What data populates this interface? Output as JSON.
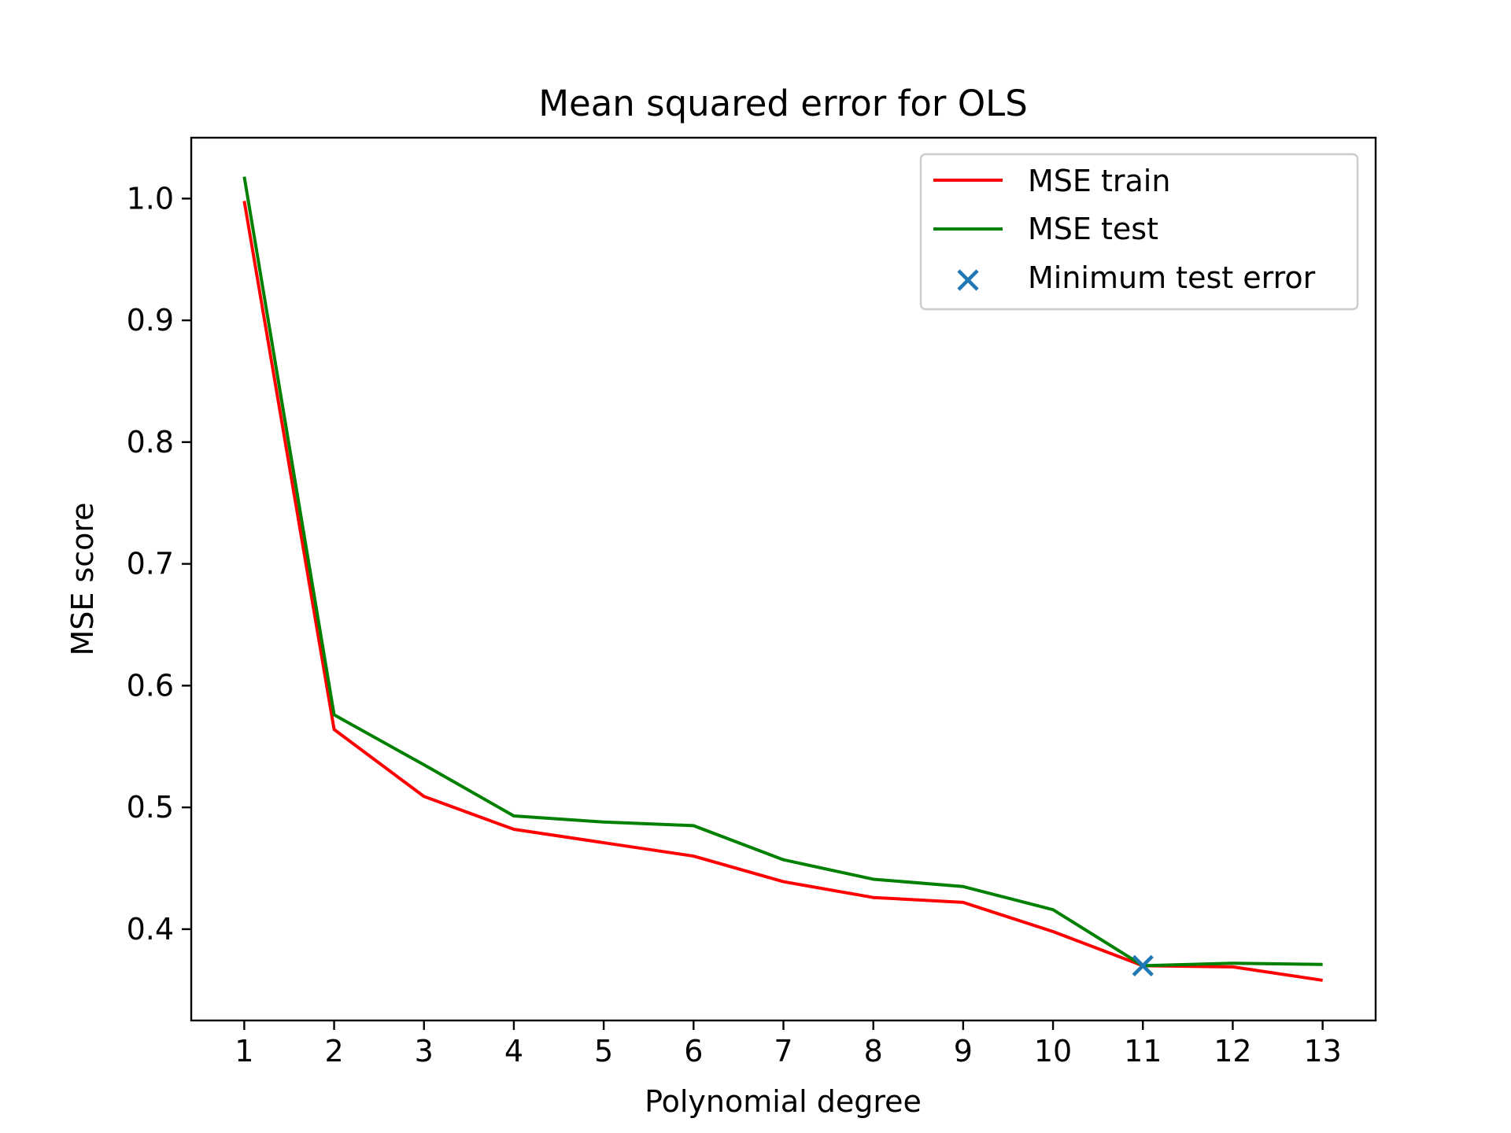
{
  "chart_data": {
    "type": "line",
    "title": "Mean squared error for OLS",
    "xlabel": "Polynomial degree",
    "ylabel": "MSE score",
    "x": [
      1,
      2,
      3,
      4,
      5,
      6,
      7,
      8,
      9,
      10,
      11,
      12,
      13
    ],
    "xlim": [
      0.41,
      13.59
    ],
    "ylim": [
      0.325,
      1.05
    ],
    "xticks": [
      "1",
      "2",
      "3",
      "4",
      "5",
      "6",
      "7",
      "8",
      "9",
      "10",
      "11",
      "12",
      "13"
    ],
    "yticks": [
      "0.4",
      "0.5",
      "0.6",
      "0.7",
      "0.8",
      "0.9",
      "1.0"
    ],
    "grid": false,
    "legend_position": "top-right",
    "series": [
      {
        "name": "MSE train",
        "color": "#ff0000",
        "values": [
          0.998,
          0.564,
          0.509,
          0.482,
          0.471,
          0.46,
          0.439,
          0.426,
          0.422,
          0.398,
          0.37,
          0.369,
          0.358
        ]
      },
      {
        "name": "MSE test",
        "color": "#008000",
        "values": [
          1.018,
          0.576,
          0.535,
          0.493,
          0.488,
          0.485,
          0.457,
          0.441,
          0.435,
          0.416,
          0.37,
          0.372,
          0.371
        ]
      }
    ],
    "marker": {
      "name": "Minimum test error",
      "color": "#1f77b4",
      "x": 11,
      "y": 0.37
    }
  }
}
